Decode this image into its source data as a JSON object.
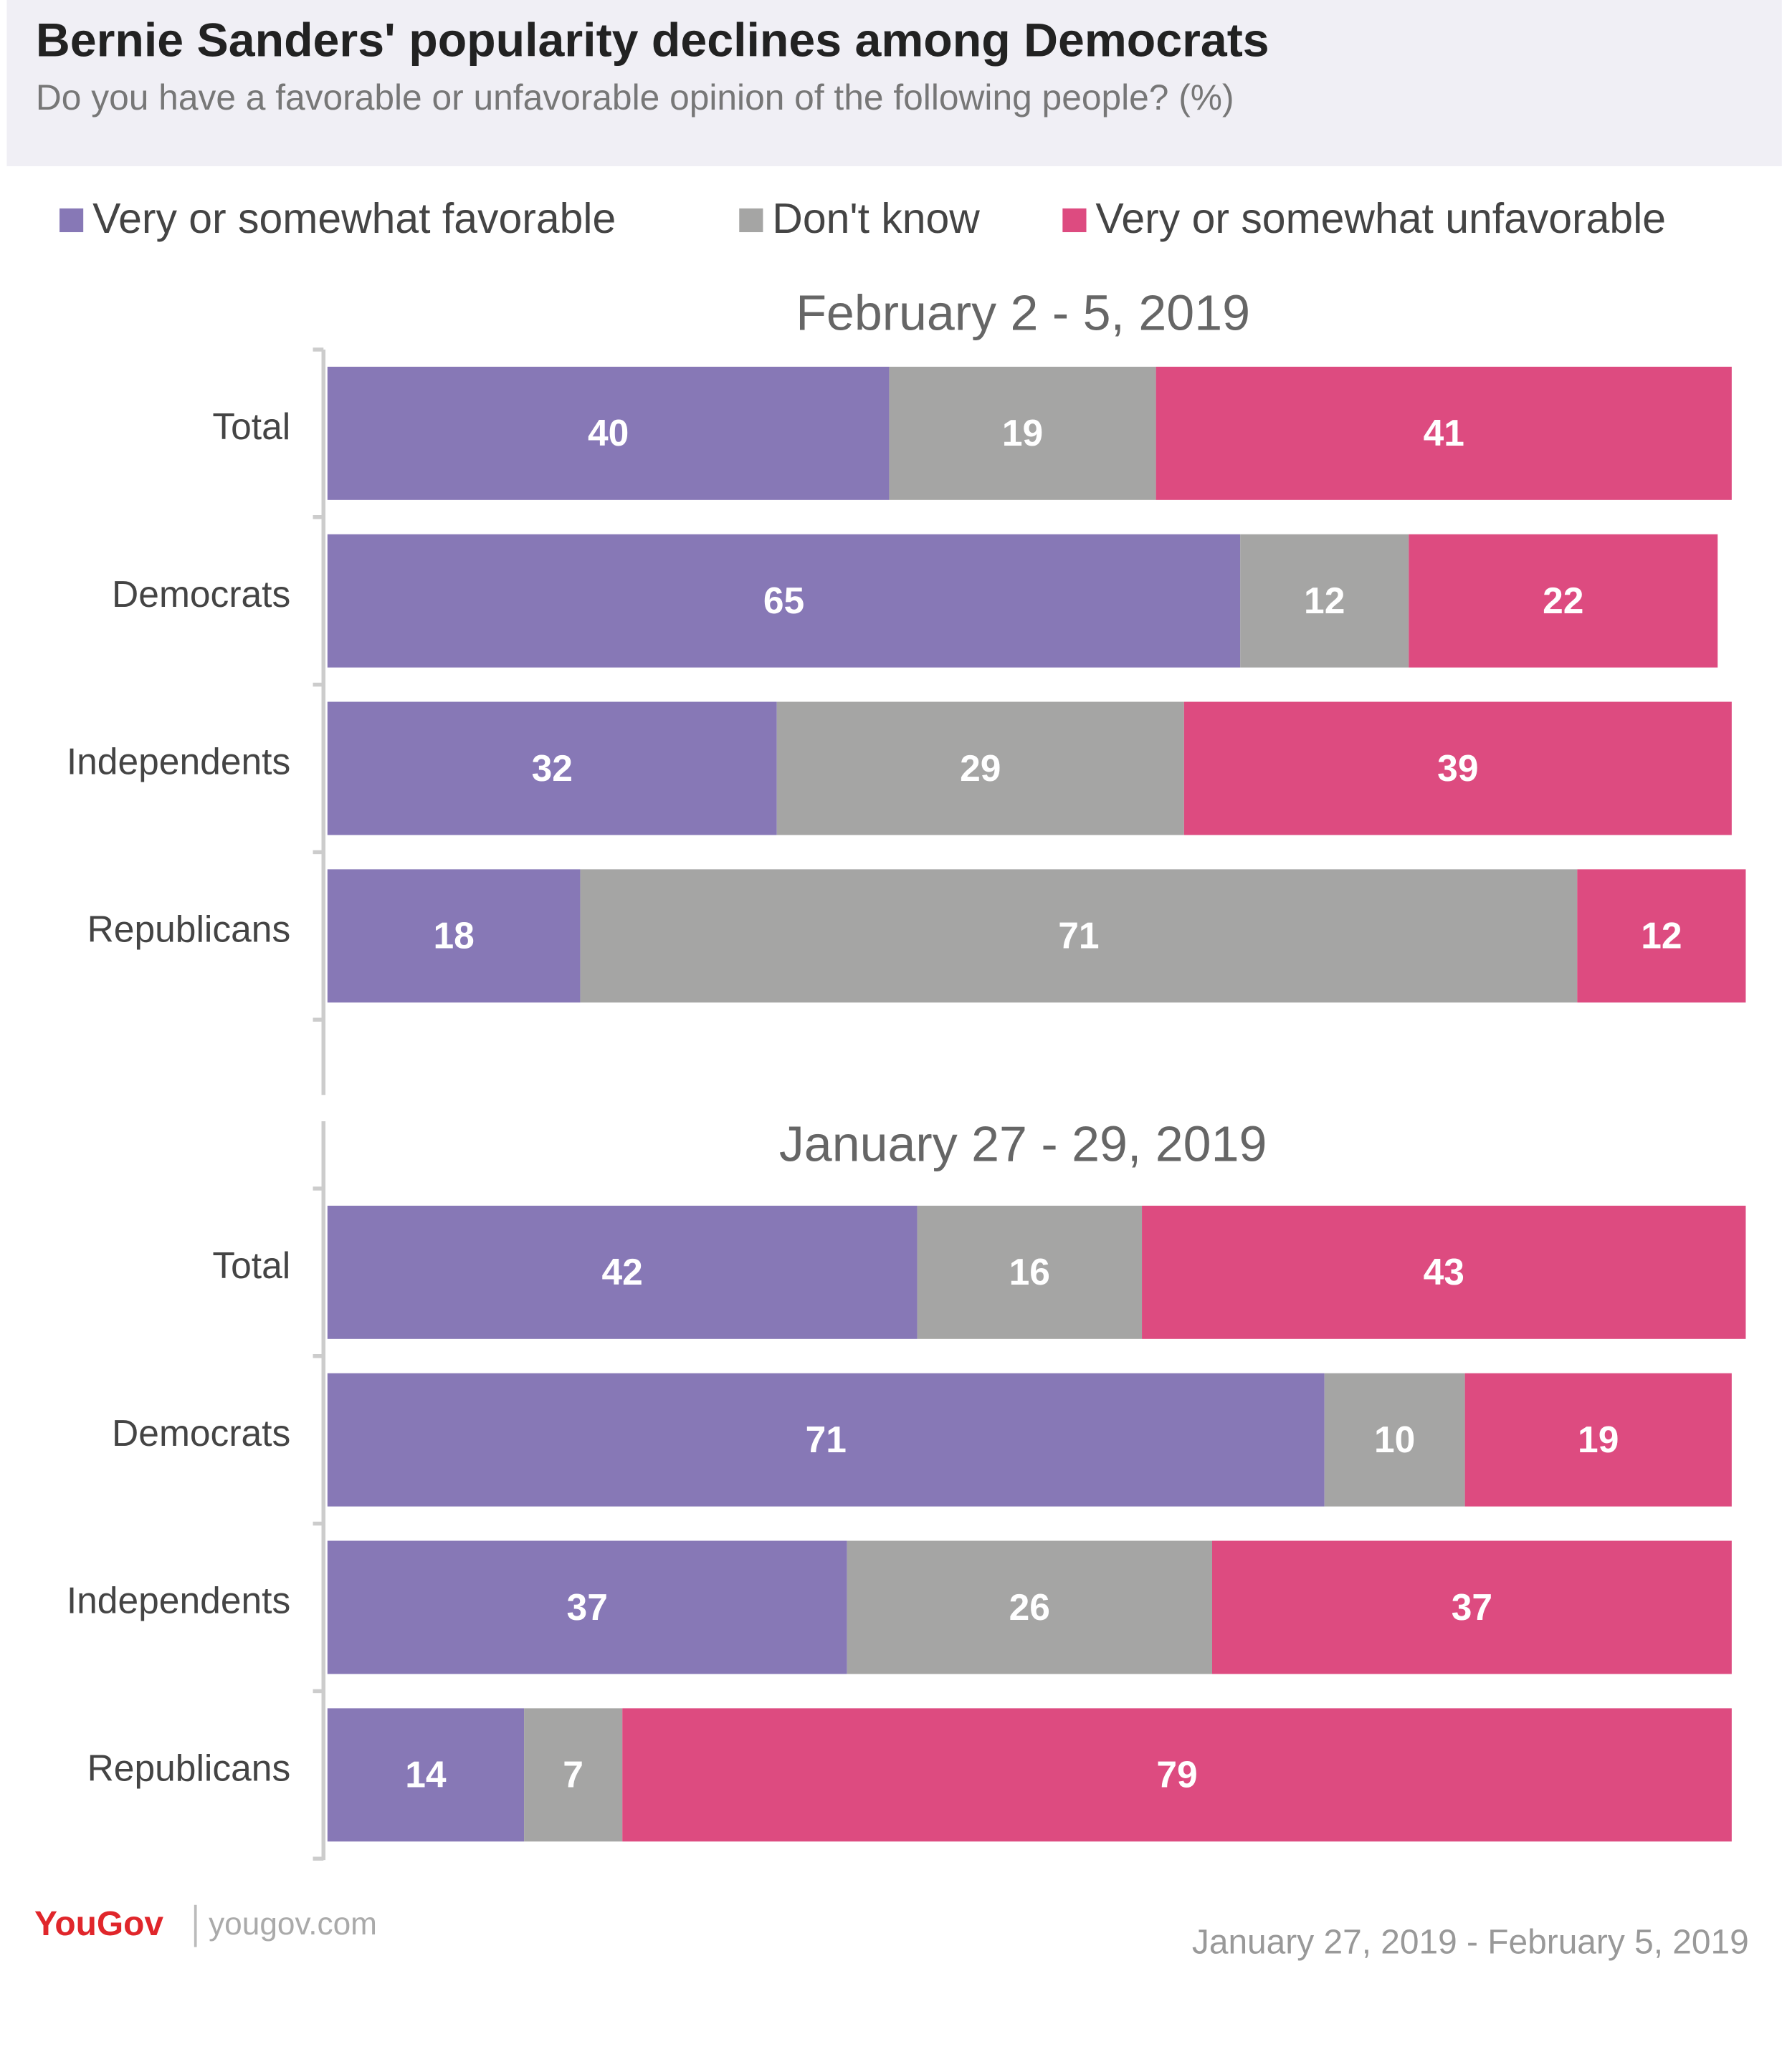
{
  "header": {
    "title": "Bernie Sanders' popularity declines among Democrats",
    "subtitle": "Do you have a favorable or unfavorable opinion of the following people? (%)"
  },
  "chart_data": [
    {
      "type": "stacked-bar",
      "title": "February 2 - 5, 2019",
      "categories": [
        "Total",
        "Democrats",
        "Independents",
        "Republicans"
      ],
      "xlim": [
        0,
        100
      ],
      "series": [
        {
          "name": "Very or somewhat favorable",
          "color": "#8778b6",
          "values": [
            40,
            65,
            32,
            18
          ]
        },
        {
          "name": "Don't know",
          "color": "#a5a5a4",
          "values": [
            19,
            12,
            29,
            71
          ]
        },
        {
          "name": "Very or somewhat unfavorable",
          "color": "#dd4b80",
          "values": [
            41,
            22,
            39,
            12
          ]
        }
      ]
    },
    {
      "type": "stacked-bar",
      "title": "January 27 - 29, 2019",
      "categories": [
        "Total",
        "Democrats",
        "Independents",
        "Republicans"
      ],
      "xlim": [
        0,
        100
      ],
      "series": [
        {
          "name": "Very or somewhat favorable",
          "color": "#8778b6",
          "values": [
            42,
            71,
            37,
            14
          ]
        },
        {
          "name": "Don't know",
          "color": "#a5a5a4",
          "values": [
            16,
            10,
            26,
            7
          ]
        },
        {
          "name": "Very or somewhat unfavorable",
          "color": "#dd4b80",
          "values": [
            43,
            19,
            37,
            79
          ]
        }
      ]
    }
  ],
  "footer": {
    "brand": "YouGov",
    "url": "yougov.com",
    "dates": "January 27, 2019  - February  5, 2019"
  }
}
